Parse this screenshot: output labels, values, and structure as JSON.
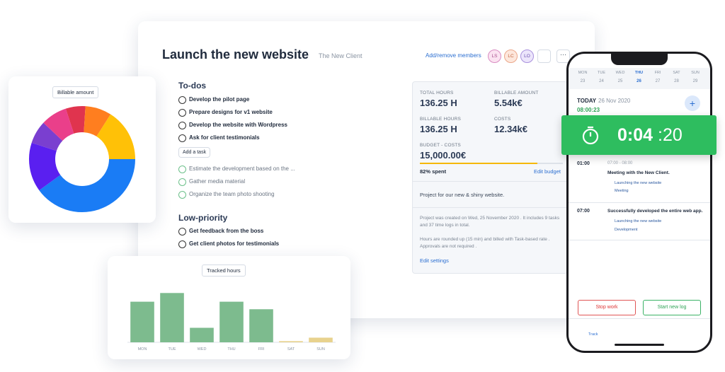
{
  "project": {
    "title": "Launch the new website",
    "client": "The New Client",
    "members_link": "Add/remove members",
    "members": [
      "LS",
      "LC",
      "LO"
    ]
  },
  "todos": {
    "heading": "To-dos",
    "open": [
      "Develop the pilot page",
      "Prepare designs for v1 website",
      "Develop the website with Wordpress",
      "Ask for client testimonials"
    ],
    "add_task": "Add a task",
    "done": [
      "Estimate the development based on the ...",
      "Gather media material",
      "Organize the team photo shooting"
    ]
  },
  "low_priority": {
    "heading": "Low-priority",
    "open": [
      "Get feedback from the boss",
      "Get client photos for testimonials"
    ]
  },
  "stats": {
    "items": [
      {
        "label": "TOTAL HOURS",
        "value": "136.25 H"
      },
      {
        "label": "BILLABLE AMOUNT",
        "value": "5.54k€"
      },
      {
        "label": "BILLABLE HOURS",
        "value": "136.25 H"
      },
      {
        "label": "COSTS",
        "value": "12.34k€"
      }
    ],
    "budget_label": "BUDGET - COSTS",
    "budget_value": "15,000.00€",
    "progress": {
      "value": 82,
      "label": "82% spent",
      "color": "#f5b800"
    },
    "edit_budget": "Edit budget",
    "description": "Project for our new & shiny website.",
    "info_created": "Project was created on Wed, 25 November 2020 . It includes 9 tasks and 37 time logs in total.",
    "info_rounding": "Hours are rounded up (15 min) and billed with Task-based rate . Approvals are not required .",
    "edit_settings": "Edit settings"
  },
  "donut": {
    "type": "pie",
    "title": "Billable amount",
    "values": [
      6,
      8,
      16,
      40,
      15,
      7,
      8
    ],
    "colors": [
      "#e0344e",
      "#ff7e1f",
      "#ffc107",
      "#1a7cf5",
      "#5a1ff0",
      "#7a3fd0",
      "#ea3f8a"
    ]
  },
  "hours": {
    "type": "bar",
    "title": "Tracked hours",
    "categories": [
      "MON",
      "TUE",
      "WED",
      "THU",
      "FRI",
      "SAT",
      "SUN"
    ],
    "values": [
      70,
      85,
      25,
      70,
      57,
      2,
      8
    ],
    "colors": [
      "#7dbb8e",
      "#7dbb8e",
      "#7dbb8e",
      "#7dbb8e",
      "#7dbb8e",
      "#e8d28e",
      "#e8d28e"
    ],
    "ylim": [
      0,
      100
    ]
  },
  "phone": {
    "days": [
      "MON",
      "TUE",
      "WED",
      "THU",
      "FRI",
      "SAT",
      "SUN"
    ],
    "dates": [
      "23",
      "24",
      "25",
      "26",
      "27",
      "28",
      "29"
    ],
    "today": "TODAY",
    "date": "26 Nov 2020",
    "clock": "08:00:23",
    "timer_main": "0:04",
    "timer_secs": ":20",
    "logs": [
      {
        "time": "01:00",
        "range": "07:00 - 08:00",
        "title": "Meeting with the New Client.",
        "project": "Launching the new website",
        "tag": "Meeting"
      },
      {
        "time": "07:00",
        "title": "Successfully developed the entire web app.",
        "project": "Launching the new website",
        "tag": "Development"
      }
    ],
    "stop": "Stop work",
    "start": "Start new log",
    "tab": "Track"
  }
}
